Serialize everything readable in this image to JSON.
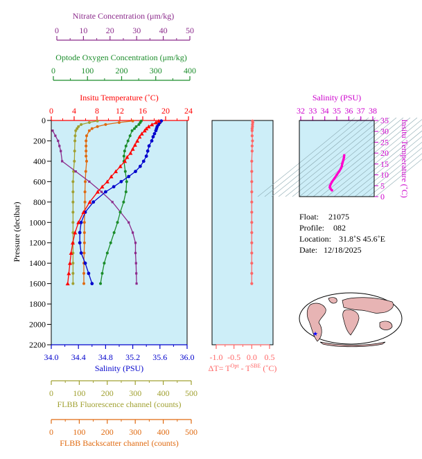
{
  "colors": {
    "nitrate": "#8b2a8b",
    "oxygen": "#1a8c2a",
    "temperature": "#ff0000",
    "salinity": "#0000cc",
    "fluorescence": "#a0a030",
    "backscatter": "#e06a10",
    "delta": "#ff6666",
    "panel_bg": "#cdeef8",
    "ts_line": "#ff00cc"
  },
  "axes": {
    "nitrate": {
      "title": "Nitrate Concentration (μm/kg)",
      "ticks": [
        "0",
        "10",
        "20",
        "30",
        "40",
        "50"
      ]
    },
    "oxygen": {
      "title": "Optode Oxygen Concentration (μm/kg)",
      "ticks": [
        "0",
        "100",
        "200",
        "300",
        "400"
      ]
    },
    "temperature": {
      "title": "Insitu Temperature (˚C)",
      "ticks": [
        "0",
        "4",
        "8",
        "12",
        "16",
        "20",
        "24"
      ]
    },
    "pressure": {
      "title": "Pressure (decibar)",
      "ticks": [
        "0",
        "200",
        "400",
        "600",
        "800",
        "1000",
        "1200",
        "1400",
        "1600",
        "1800",
        "2000",
        "2200"
      ]
    },
    "salinity": {
      "title": "Salinity (PSU)",
      "ticks": [
        "34.0",
        "34.4",
        "34.8",
        "35.2",
        "35.6",
        "36.0"
      ]
    },
    "fluorescence": {
      "title": "FLBB Fluorescence channel (counts)",
      "ticks": [
        "0",
        "100",
        "200",
        "300",
        "400",
        "500"
      ]
    },
    "backscatter": {
      "title": "FLBB Backscatter channel (counts)",
      "ticks": [
        "0",
        "100",
        "200",
        "300",
        "400",
        "500"
      ]
    },
    "delta": {
      "title_prefix": "ΔT= T",
      "sup1": "Opt",
      "mid": " - T",
      "sup2": "SBE",
      "title_suffix": " (˚C)",
      "ticks": [
        "-1.0",
        "-0.5",
        "0.0",
        "0.5"
      ]
    },
    "ts_salinity": {
      "title": "Salinity (PSU)",
      "ticks": [
        "32",
        "33",
        "34",
        "35",
        "36",
        "37",
        "38"
      ]
    },
    "ts_temperature": {
      "title": "Insitu Temperature (˚C)",
      "ticks": [
        "0",
        "5",
        "10",
        "15",
        "20",
        "25",
        "30",
        "35"
      ]
    }
  },
  "info": {
    "float_label": "Float:",
    "float": "21075",
    "profile_label": "Profile:",
    "profile": "082",
    "location_label": "Location:",
    "location": "31.8˚S  45.6˚E",
    "date_label": "Date:",
    "date": "12/18/2025"
  },
  "chart_data": [
    {
      "type": "line",
      "y_axis": "Pressure (decibar)",
      "ylim": [
        2200,
        0
      ],
      "series": [
        {
          "name": "Insitu Temperature (˚C)",
          "xlim": [
            0,
            24
          ],
          "pressure": [
            5,
            20,
            40,
            60,
            80,
            100,
            130,
            160,
            200,
            240,
            280,
            320,
            360,
            400,
            450,
            500,
            550,
            600,
            650,
            700,
            800,
            900,
            1000,
            1100,
            1200,
            1300,
            1400,
            1500,
            1600
          ],
          "values": [
            19.0,
            18.5,
            17.8,
            17.2,
            16.8,
            16.5,
            16.0,
            15.6,
            15.2,
            14.8,
            14.4,
            14.0,
            13.4,
            13.0,
            12.2,
            11.4,
            10.6,
            9.9,
            9.0,
            8.2,
            6.8,
            5.7,
            4.8,
            4.2,
            3.8,
            3.5,
            3.3,
            3.1,
            2.9
          ]
        },
        {
          "name": "Salinity (PSU)",
          "xlim": [
            34.0,
            36.0
          ],
          "pressure": [
            5,
            20,
            40,
            60,
            80,
            100,
            130,
            160,
            200,
            250,
            300,
            350,
            400,
            450,
            500,
            550,
            600,
            650,
            700,
            800,
            900,
            1000,
            1100,
            1200,
            1300,
            1400,
            1500,
            1600
          ],
          "values": [
            35.62,
            35.6,
            35.58,
            35.56,
            35.55,
            35.54,
            35.52,
            35.5,
            35.48,
            35.44,
            35.42,
            35.4,
            35.36,
            35.31,
            35.24,
            35.14,
            35.03,
            34.92,
            34.8,
            34.62,
            34.5,
            34.44,
            34.42,
            34.42,
            34.44,
            34.5,
            34.55,
            34.6
          ]
        },
        {
          "name": "Optode Oxygen Concentration (μm/kg)",
          "xlim": [
            0,
            400
          ],
          "pressure": [
            5,
            20,
            40,
            60,
            80,
            100,
            150,
            200,
            250,
            300,
            350,
            400,
            500,
            600,
            700,
            800,
            900,
            1000,
            1100,
            1200,
            1300,
            1400,
            1500,
            1600
          ],
          "values": [
            265,
            262,
            258,
            250,
            245,
            238,
            232,
            226,
            220,
            216,
            214,
            214,
            218,
            222,
            220,
            213,
            203,
            195,
            185,
            175,
            165,
            156,
            150,
            145
          ]
        },
        {
          "name": "Nitrate Concentration (μm/kg)",
          "xlim": [
            0,
            50
          ],
          "pressure": [
            100,
            150,
            200,
            250,
            300,
            400,
            500,
            600,
            700,
            800,
            900,
            1000,
            1100,
            1200,
            1300,
            1400,
            1500,
            1600
          ],
          "values": [
            0.5,
            1.5,
            2.5,
            3.0,
            3.5,
            4.0,
            9.0,
            14.0,
            18.5,
            22.5,
            25.5,
            28.5,
            30.0,
            31.0,
            31.0,
            31.2,
            31.3,
            31.4
          ]
        },
        {
          "name": "FLBB Fluorescence channel (counts)",
          "xlim": [
            0,
            500
          ],
          "pressure": [
            5,
            20,
            40,
            60,
            80,
            100,
            150,
            200,
            300,
            400,
            500,
            600,
            700,
            800,
            900,
            1000,
            1100,
            1200,
            1300,
            1400,
            1500,
            1600
          ],
          "values": [
            170,
            140,
            110,
            100,
            95,
            90,
            88,
            87,
            86,
            85,
            82,
            80,
            80,
            80,
            80,
            80,
            80,
            80,
            80,
            80,
            80,
            80
          ]
        },
        {
          "name": "FLBB Backscatter channel (counts)",
          "xlim": [
            0,
            500
          ],
          "pressure": [
            5,
            20,
            40,
            60,
            80,
            100,
            150,
            200,
            250,
            300,
            350,
            400,
            500,
            600,
            700,
            800,
            900,
            1000,
            1100,
            1200,
            1300,
            1400,
            1500,
            1600
          ],
          "values": [
            300,
            250,
            200,
            170,
            150,
            140,
            130,
            128,
            128,
            128,
            128,
            130,
            127,
            125,
            124,
            124,
            123,
            122,
            122,
            122,
            121,
            120,
            120,
            120
          ]
        }
      ]
    },
    {
      "type": "scatter",
      "xlabel": "ΔT= TOpt - TSBE (˚C)",
      "xlim": [
        -1.0,
        0.5
      ],
      "ylim": [
        2200,
        0
      ],
      "pressure": [
        5,
        20,
        40,
        60,
        80,
        100,
        150,
        200,
        250,
        300,
        400,
        500,
        600,
        700,
        800,
        900,
        1000,
        1100,
        1200,
        1300,
        1400,
        1500,
        1600
      ],
      "values": [
        0.02,
        0.03,
        0.02,
        0.02,
        0.01,
        0.01,
        0.01,
        0.02,
        0.01,
        0.01,
        0.0,
        0.0,
        0.0,
        0.0,
        0.0,
        0.0,
        0.0,
        0.0,
        0.0,
        0.0,
        0.0,
        0.0,
        0.0
      ]
    },
    {
      "type": "line",
      "xlabel": "Salinity (PSU)",
      "ylabel": "Insitu Temperature (˚C)",
      "xlim": [
        32,
        38
      ],
      "ylim": [
        0,
        35
      ],
      "salinity": [
        34.6,
        34.5,
        34.42,
        34.44,
        34.6,
        34.8,
        35.0,
        35.2,
        35.35,
        35.42,
        35.46,
        35.5,
        35.56,
        35.6,
        35.62
      ],
      "temperature": [
        2.9,
        3.5,
        4.2,
        5.0,
        6.8,
        8.3,
        10.0,
        11.6,
        13.0,
        14.0,
        15.2,
        16.0,
        17.0,
        18.0,
        19.0
      ]
    }
  ]
}
